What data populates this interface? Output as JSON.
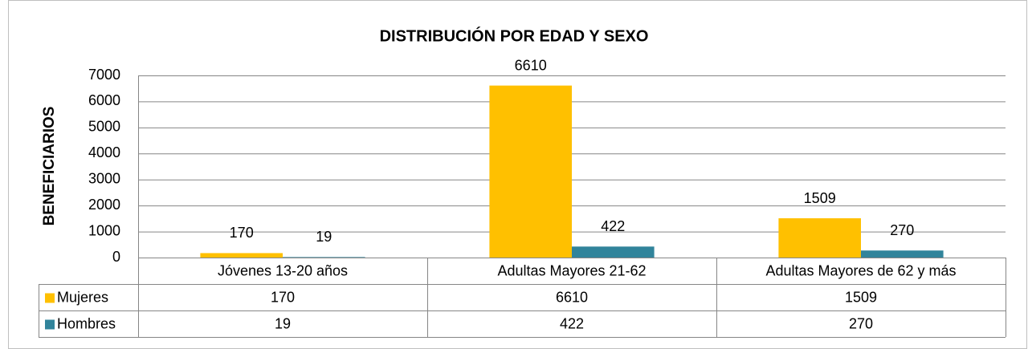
{
  "chart_data": {
    "type": "bar",
    "title": "DISTRIBUCIÓN POR EDAD Y SEXO",
    "y_label": "BENEFICIARIOS",
    "categories": [
      "Jóvenes 13-20 años",
      "Adultas Mayores 21-62",
      "Adultas Mayores de 62 y más"
    ],
    "series": [
      {
        "name": "Mujeres",
        "color": "#FFC000",
        "values": [
          170,
          6610,
          1509
        ]
      },
      {
        "name": "Hombres",
        "color": "#31849B",
        "values": [
          19,
          422,
          270
        ]
      }
    ],
    "ylim": [
      0,
      7000
    ],
    "yticks": [
      0,
      1000,
      2000,
      3000,
      4000,
      5000,
      6000,
      7000
    ],
    "grid": true,
    "data_table": true
  }
}
